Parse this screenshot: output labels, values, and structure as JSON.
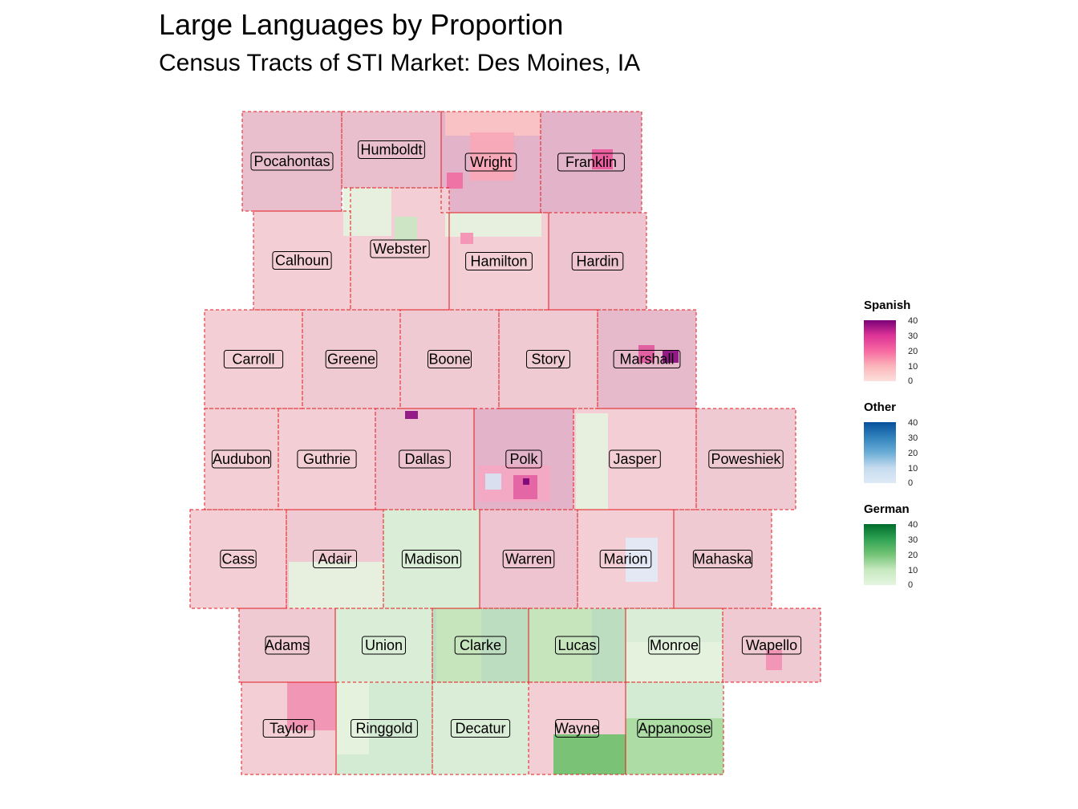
{
  "title": "Large Languages by Proportion",
  "subtitle": "Census Tracts of STI Market: Des Moines, IA",
  "colors": {
    "spanish_low": "#fde0dd",
    "spanish_high": "#7a0177",
    "other_low": "#deebf7",
    "other_high": "#08519c",
    "german_low": "#e5f5e0",
    "german_high": "#006d2c",
    "county_border": "#e31a1c",
    "outline": "#000000"
  },
  "counties": [
    {
      "name": "Pocahontas",
      "lang": "Spanish",
      "level": 6
    },
    {
      "name": "Humboldt",
      "lang": "Spanish",
      "level": 6
    },
    {
      "name": "Wright",
      "lang": "Spanish",
      "level": 8
    },
    {
      "name": "Franklin",
      "lang": "Spanish",
      "level": 8
    },
    {
      "name": "Calhoun",
      "lang": "Spanish",
      "level": 3
    },
    {
      "name": "Webster",
      "lang": "Spanish",
      "level": 3
    },
    {
      "name": "Hamilton",
      "lang": "Spanish",
      "level": 3
    },
    {
      "name": "Hardin",
      "lang": "Spanish",
      "level": 5
    },
    {
      "name": "Carroll",
      "lang": "Spanish",
      "level": 3
    },
    {
      "name": "Greene",
      "lang": "Spanish",
      "level": 4
    },
    {
      "name": "Boone",
      "lang": "Spanish",
      "level": 4
    },
    {
      "name": "Story",
      "lang": "Spanish",
      "level": 4
    },
    {
      "name": "Marshall",
      "lang": "Spanish",
      "level": 7
    },
    {
      "name": "Audubon",
      "lang": "Spanish",
      "level": 3
    },
    {
      "name": "Guthrie",
      "lang": "Spanish",
      "level": 3
    },
    {
      "name": "Dallas",
      "lang": "Spanish",
      "level": 5
    },
    {
      "name": "Polk",
      "lang": "Spanish",
      "level": 8
    },
    {
      "name": "Jasper",
      "lang": "Spanish",
      "level": 3
    },
    {
      "name": "Poweshiek",
      "lang": "Spanish",
      "level": 4
    },
    {
      "name": "Cass",
      "lang": "Spanish",
      "level": 3
    },
    {
      "name": "Adair",
      "lang": "Spanish",
      "level": 4
    },
    {
      "name": "Madison",
      "lang": "German",
      "level": 2
    },
    {
      "name": "Warren",
      "lang": "Spanish",
      "level": 5
    },
    {
      "name": "Marion",
      "lang": "Spanish",
      "level": 3
    },
    {
      "name": "Mahaska",
      "lang": "Spanish",
      "level": 4
    },
    {
      "name": "Adams",
      "lang": "Spanish",
      "level": 4
    },
    {
      "name": "Union",
      "lang": "German",
      "level": 2
    },
    {
      "name": "Clarke",
      "lang": "German",
      "level": 7
    },
    {
      "name": "Lucas",
      "lang": "German",
      "level": 7
    },
    {
      "name": "Monroe",
      "lang": "German",
      "level": 2
    },
    {
      "name": "Wapello",
      "lang": "Spanish",
      "level": 4
    },
    {
      "name": "Taylor",
      "lang": "Spanish",
      "level": 3
    },
    {
      "name": "Ringgold",
      "lang": "German",
      "level": 3
    },
    {
      "name": "Decatur",
      "lang": "German",
      "level": 2
    },
    {
      "name": "Wayne",
      "lang": "Spanish",
      "level": 3
    },
    {
      "name": "Appanoose",
      "lang": "German",
      "level": 3
    }
  ],
  "legends": [
    {
      "title": "Spanish",
      "ticks": [
        "40",
        "30",
        "20",
        "10",
        "0"
      ],
      "color_low": "#fde0dd",
      "color_high": "#7a0177"
    },
    {
      "title": "Other",
      "ticks": [
        "40",
        "30",
        "20",
        "10",
        "0"
      ],
      "color_low": "#deebf7",
      "color_high": "#08519c"
    },
    {
      "title": "German",
      "ticks": [
        "40",
        "30",
        "20",
        "10",
        "0"
      ],
      "color_low": "#e5f5e0",
      "color_high": "#006d2c"
    }
  ]
}
